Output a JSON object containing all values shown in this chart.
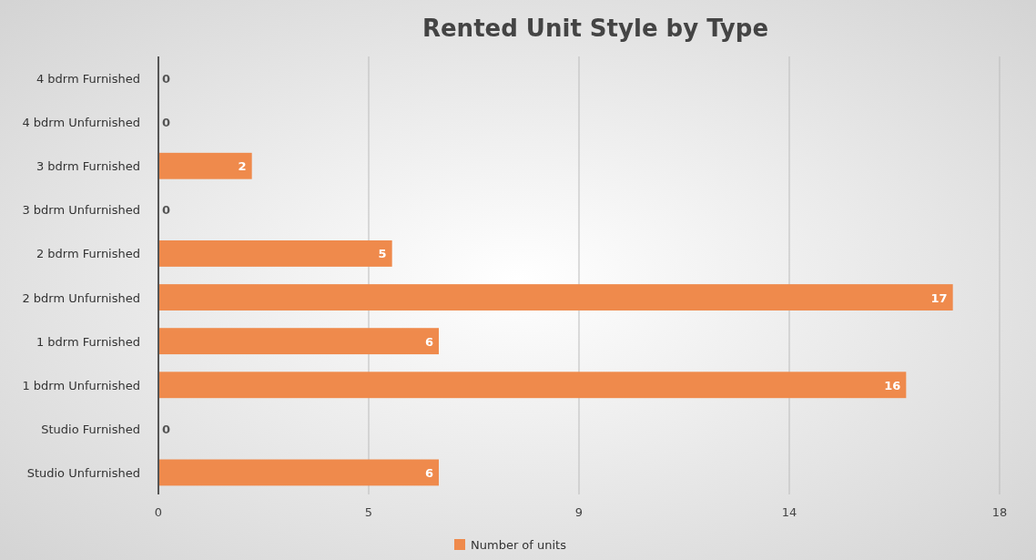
{
  "chart_data": {
    "type": "bar",
    "orientation": "horizontal",
    "title": "Rented Unit Style by Type",
    "categories": [
      "4 bdrm Furnished",
      "4 bdrm Unfurnished",
      "3 bdrm Furnished",
      "3 bdrm Unfurnished",
      "2 bdrm Furnished",
      "2 bdrm Unfurnished",
      "1 bdrm Furnished",
      "1 bdrm Unfurnished",
      "Studio Furnished",
      "Studio Unfurnished"
    ],
    "series": [
      {
        "name": "Number of units",
        "color": "#ef8a4c",
        "values": [
          0,
          0,
          2,
          0,
          5,
          17,
          6,
          16,
          0,
          6
        ]
      }
    ],
    "xlim": [
      0,
      18
    ],
    "xticks": [
      0,
      {
        "value": 4.5,
        "label": "5"
      },
      9,
      {
        "value": 13.5,
        "label": "14"
      },
      18
    ],
    "grid": "x",
    "legend": "bottom",
    "data_labels": true
  }
}
